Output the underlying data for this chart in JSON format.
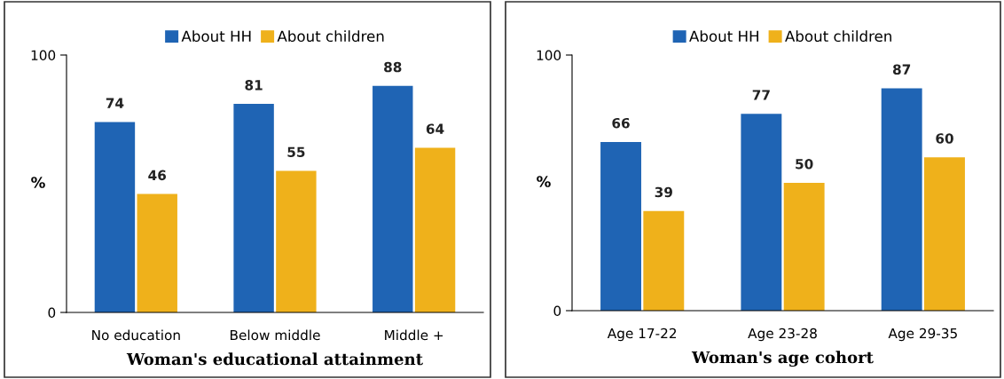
{
  "chart_data": [
    {
      "type": "bar",
      "categories": [
        "No education",
        "Below middle",
        "Middle +"
      ],
      "xlabel": "Woman's educational attainment",
      "ylabel": "%",
      "ylim": [
        0,
        100
      ],
      "yticks": [
        0,
        100
      ],
      "data_labels": true,
      "legend": "top",
      "grid": false,
      "series": [
        {
          "name": "About HH",
          "color": "#1f64b4",
          "values": [
            74,
            81,
            88
          ]
        },
        {
          "name": "About children",
          "color": "#efb11b",
          "values": [
            46,
            55,
            64
          ]
        }
      ]
    },
    {
      "type": "bar",
      "categories": [
        "Age 17-22",
        "Age 23-28",
        "Age 29-35"
      ],
      "xlabel": "Woman's age cohort",
      "ylabel": "%",
      "ylim": [
        0,
        100
      ],
      "yticks": [
        0,
        100
      ],
      "data_labels": true,
      "legend": "top",
      "grid": false,
      "series": [
        {
          "name": "About HH",
          "color": "#1f64b4",
          "values": [
            66,
            77,
            87
          ]
        },
        {
          "name": "About children",
          "color": "#efb11b",
          "values": [
            39,
            50,
            60
          ]
        }
      ]
    }
  ]
}
